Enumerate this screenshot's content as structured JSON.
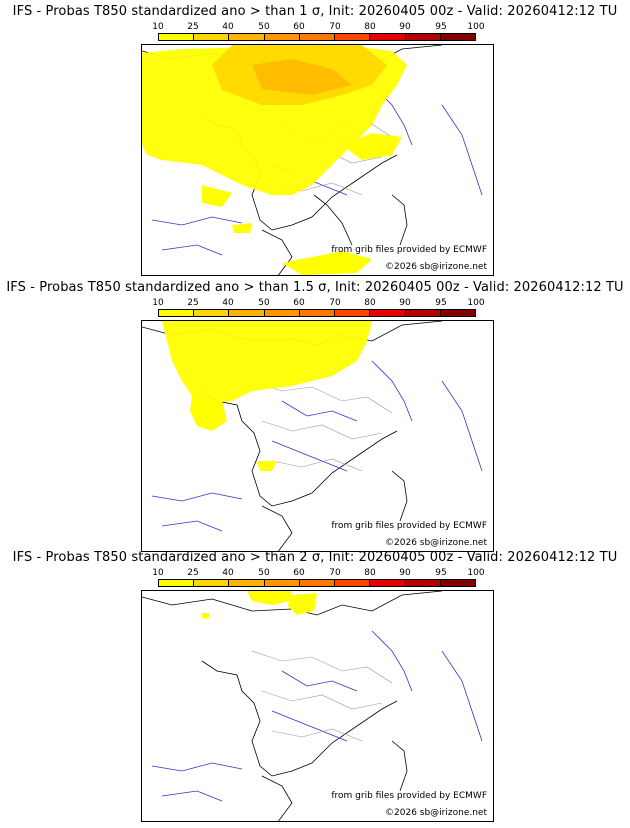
{
  "colorbar": {
    "labels": [
      "10",
      "25",
      "40",
      "50",
      "60",
      "70",
      "80",
      "90",
      "95",
      "100"
    ],
    "colors": [
      "#ffff00",
      "#ffd700",
      "#ffb400",
      "#ff9600",
      "#ff7800",
      "#ff4600",
      "#e60000",
      "#b40000",
      "#820000",
      "#500000"
    ]
  },
  "panels": [
    {
      "title": "IFS - Probas T850  standardized ano > than 1 σ, Init: 20260405 00z - Valid: 20260412:12 TU",
      "credit_source": "from grib files provided by ECMWF",
      "credit_site": "©2026 sb@irizone.net",
      "coverage": "large"
    },
    {
      "title": "IFS - Probas T850  standardized ano > than 1.5 σ, Init: 20260405 00z - Valid: 20260412:12 TU",
      "credit_source": "from grib files provided by ECMWF",
      "credit_site": "©2026 sb@irizone.net",
      "coverage": "medium"
    },
    {
      "title": "IFS - Probas T850  standardized ano > than 2 σ, Init: 20260405 00z - Valid: 20260412:12 TU",
      "credit_source": "from grib files provided by ECMWF",
      "credit_site": "©2026 sb@irizone.net",
      "coverage": "small"
    }
  ]
}
